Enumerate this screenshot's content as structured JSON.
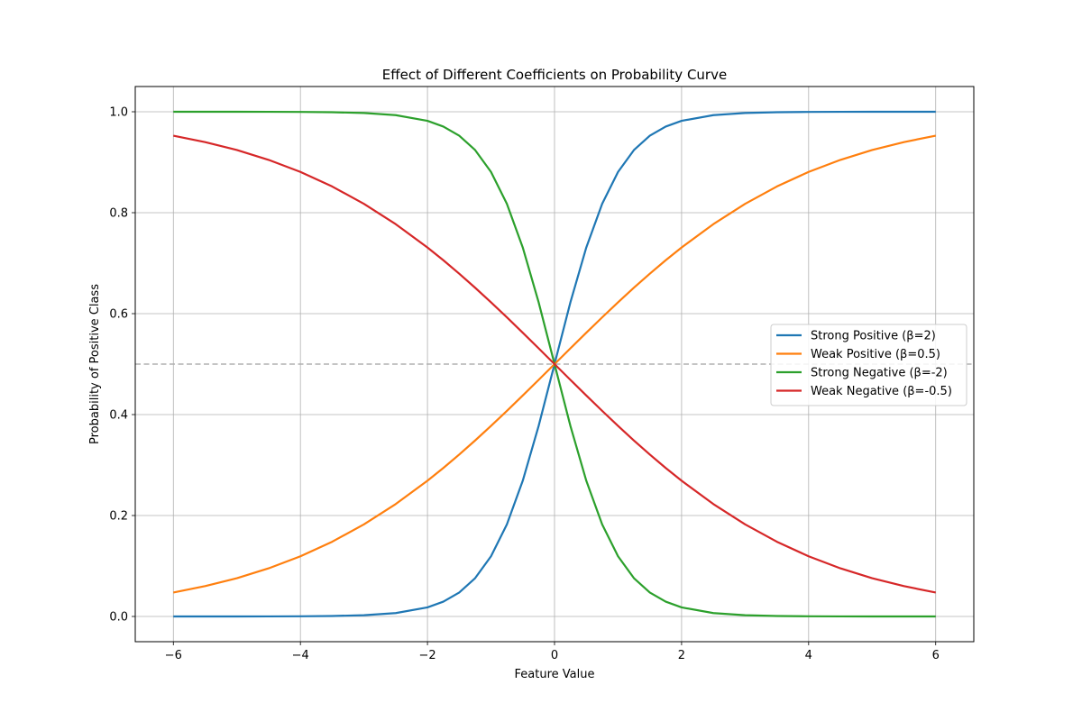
{
  "chart_data": {
    "type": "line",
    "title": "Effect of Different Coefficients on Probability Curve",
    "xlabel": "Feature Value",
    "ylabel": "Probability of Positive Class",
    "xlim": [
      -6.6,
      6.6
    ],
    "ylim": [
      -0.05,
      1.05
    ],
    "xticks": [
      -6,
      -4,
      -2,
      0,
      2,
      4,
      6
    ],
    "xtick_labels": [
      "−6",
      "−4",
      "−2",
      "0",
      "2",
      "4",
      "6"
    ],
    "yticks": [
      0.0,
      0.2,
      0.4,
      0.6,
      0.8,
      1.0
    ],
    "ytick_labels": [
      "0.0",
      "0.2",
      "0.4",
      "0.6",
      "0.8",
      "1.0"
    ],
    "grid": true,
    "legend_position": "center-right",
    "reference_line": {
      "y": 0.5,
      "style": "dashed",
      "color": "#b0b0b0"
    },
    "x": [
      -6,
      -5.5,
      -5,
      -4.5,
      -4,
      -3.5,
      -3,
      -2.5,
      -2,
      -1.75,
      -1.5,
      -1.25,
      -1,
      -0.75,
      -0.5,
      -0.25,
      0,
      0.25,
      0.5,
      0.75,
      1,
      1.25,
      1.5,
      1.75,
      2,
      2.5,
      3,
      3.5,
      4,
      4.5,
      5,
      5.5,
      6
    ],
    "series": [
      {
        "name": "Strong Positive (β=2)",
        "color": "#1f77b4",
        "values": [
          6e-06,
          1.7e-05,
          4.5e-05,
          0.000123,
          0.000335,
          0.000911,
          0.002473,
          0.006693,
          0.017986,
          0.029312,
          0.047426,
          0.075858,
          0.119203,
          0.182426,
          0.268941,
          0.377541,
          0.5,
          0.622459,
          0.731059,
          0.817574,
          0.880797,
          0.924142,
          0.952574,
          0.970688,
          0.982014,
          0.993307,
          0.997527,
          0.999089,
          0.999665,
          0.999877,
          0.999955,
          0.999983,
          0.999994
        ]
      },
      {
        "name": "Weak Positive (β=0.5)",
        "color": "#ff7f0e",
        "values": [
          0.047426,
          0.060087,
          0.075858,
          0.095349,
          0.119203,
          0.148047,
          0.182426,
          0.2227,
          0.268941,
          0.294215,
          0.320821,
          0.348645,
          0.377541,
          0.407333,
          0.437823,
          0.468791,
          0.5,
          0.531209,
          0.562177,
          0.592667,
          0.622459,
          0.651355,
          0.679179,
          0.705785,
          0.731059,
          0.7773,
          0.817574,
          0.851953,
          0.880797,
          0.904651,
          0.924142,
          0.939913,
          0.952574
        ]
      },
      {
        "name": "Strong Negative (β=-2)",
        "color": "#2ca02c",
        "values": [
          0.999994,
          0.999983,
          0.999955,
          0.999877,
          0.999665,
          0.999089,
          0.997527,
          0.993307,
          0.982014,
          0.970688,
          0.952574,
          0.924142,
          0.880797,
          0.817574,
          0.731059,
          0.622459,
          0.5,
          0.377541,
          0.268941,
          0.182426,
          0.119203,
          0.075858,
          0.047426,
          0.029312,
          0.017986,
          0.006693,
          0.002473,
          0.000911,
          0.000335,
          0.000123,
          4.5e-05,
          1.7e-05,
          6e-06
        ]
      },
      {
        "name": "Weak Negative (β=-0.5)",
        "color": "#d62728",
        "values": [
          0.952574,
          0.939913,
          0.924142,
          0.904651,
          0.880797,
          0.851953,
          0.817574,
          0.7773,
          0.731059,
          0.705785,
          0.679179,
          0.651355,
          0.622459,
          0.592667,
          0.562177,
          0.531209,
          0.5,
          0.468791,
          0.437823,
          0.407333,
          0.377541,
          0.348645,
          0.320821,
          0.294215,
          0.268941,
          0.2227,
          0.182426,
          0.148047,
          0.119203,
          0.095349,
          0.075858,
          0.060087,
          0.047426
        ]
      }
    ]
  }
}
